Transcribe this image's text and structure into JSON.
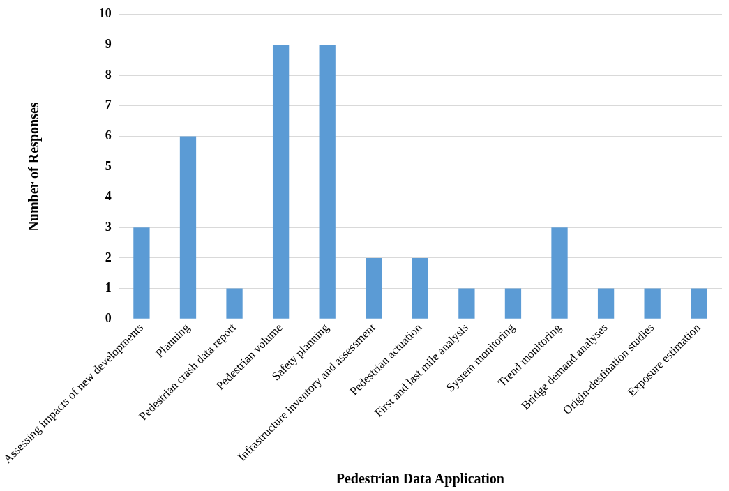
{
  "chart_data": {
    "type": "bar",
    "xlabel": "Pedestrian Data Application",
    "ylabel": "Number of Responses",
    "categories": [
      "Assessing impacts of new developments",
      "Planning",
      "Pedestrian crash data report",
      "Pedestrian volume",
      "Safety planning",
      "Infrastructure inventory and assessment",
      "Pedestrian actuation",
      "First and last mile analysis",
      "System monitoring",
      "Trend monitoring",
      "Bridge demand analyses",
      "Origin-destination studies",
      "Exposure estimation"
    ],
    "values": [
      3,
      6,
      1,
      9,
      9,
      2,
      2,
      1,
      1,
      3,
      1,
      1,
      1
    ],
    "color": "#5b9bd5",
    "ylim": [
      0,
      10
    ],
    "yticks": [
      0,
      1,
      2,
      3,
      4,
      5,
      6,
      7,
      8,
      9,
      10
    ],
    "grid": "y",
    "legend": false
  }
}
